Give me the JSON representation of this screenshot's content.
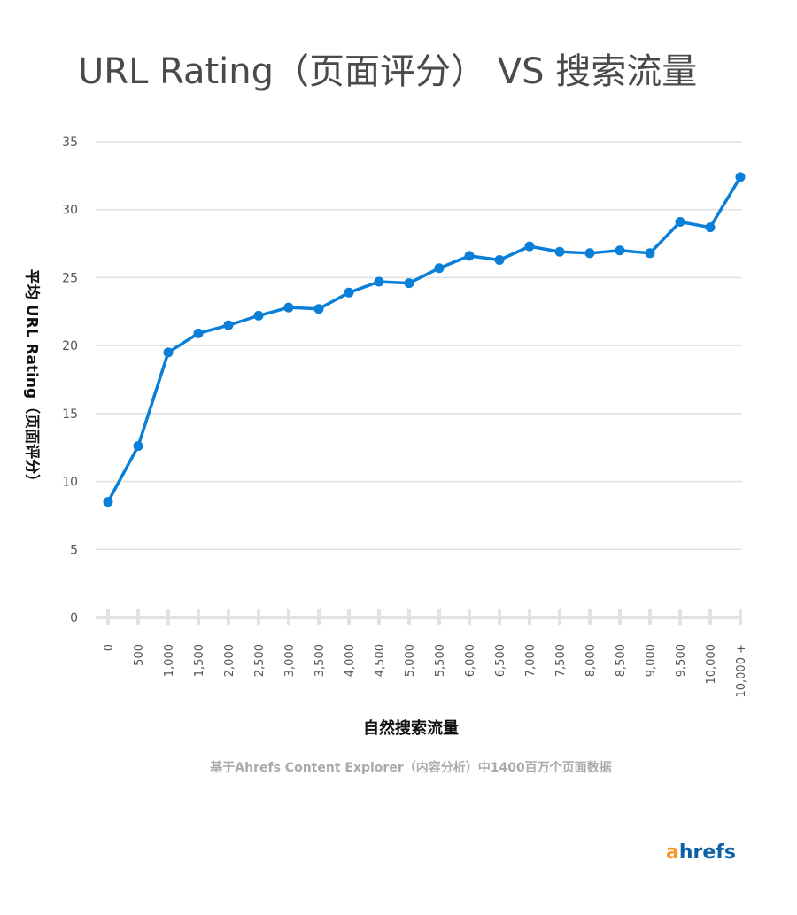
{
  "chart_data": {
    "type": "line",
    "title": "URL Rating（页面评分） VS 搜索流量",
    "xlabel": "自然搜索流量",
    "ylabel": "平均 URL Rating（页面评分）",
    "categories": [
      "0",
      "500",
      "1,000",
      "1,500",
      "2,000",
      "2,500",
      "3,000",
      "3,500",
      "4,000",
      "4,500",
      "5,000",
      "5,500",
      "6,000",
      "6,500",
      "7,000",
      "7,500",
      "8,000",
      "8,500",
      "9,000",
      "9,500",
      "10,000",
      "10,000 +"
    ],
    "values": [
      8.5,
      12.6,
      19.5,
      20.9,
      21.5,
      22.2,
      22.8,
      22.7,
      23.9,
      24.7,
      24.6,
      25.7,
      26.6,
      26.3,
      27.3,
      26.9,
      26.8,
      27.0,
      26.8,
      29.1,
      28.7,
      32.4
    ],
    "ylim": [
      0,
      35
    ],
    "yticks": [
      0,
      5,
      10,
      15,
      20,
      25,
      30,
      35
    ],
    "grid": true,
    "line_color": "#0a7fd8"
  },
  "source": "基于Ahrefs Content Explorer（内容分析）中1400百万个页面数据",
  "logo": {
    "a": "a",
    "rest": "hrefs"
  }
}
